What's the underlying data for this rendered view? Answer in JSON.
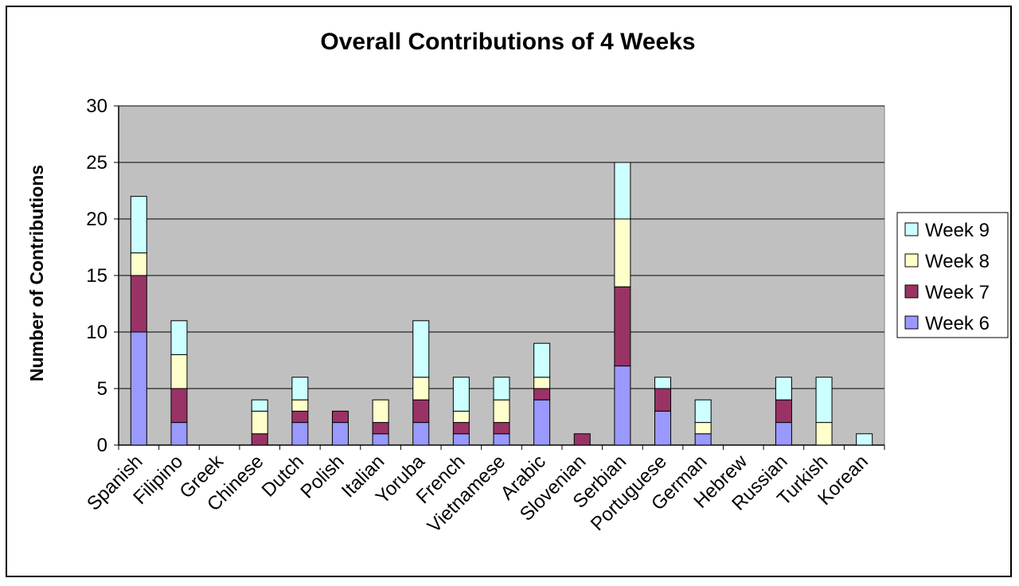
{
  "chart_data": {
    "type": "bar",
    "stacked": true,
    "title": "Overall Contributions of 4 Weeks",
    "xlabel": "",
    "ylabel": "Number of Contributions",
    "ylim": [
      0,
      30
    ],
    "yticks": [
      0,
      5,
      10,
      15,
      20,
      25,
      30
    ],
    "grid": true,
    "legend_position": "right",
    "plot_background": "#c0c0c0",
    "categories": [
      "Spanish",
      "Filipino",
      "Greek",
      "Chinese",
      "Dutch",
      "Polish",
      "Italian",
      "Yoruba",
      "French",
      "Vietnamese",
      "Arabic",
      "Slovenian",
      "Serbian",
      "Portuguese",
      "German",
      "Hebrew",
      "Russian",
      "Turkish",
      "Korean"
    ],
    "series": [
      {
        "name": "Week 6",
        "color": "#9999ff",
        "values": [
          10,
          2,
          0,
          0,
          2,
          2,
          1,
          2,
          1,
          1,
          4,
          0,
          7,
          3,
          1,
          0,
          2,
          0,
          0
        ]
      },
      {
        "name": "Week 7",
        "color": "#993366",
        "values": [
          5,
          3,
          0,
          1,
          1,
          1,
          1,
          2,
          1,
          1,
          1,
          1,
          7,
          2,
          0,
          0,
          2,
          0,
          0
        ]
      },
      {
        "name": "Week 8",
        "color": "#ffffcc",
        "values": [
          2,
          3,
          0,
          2,
          1,
          0,
          2,
          2,
          1,
          2,
          1,
          0,
          6,
          0,
          1,
          0,
          0,
          2,
          0
        ]
      },
      {
        "name": "Week 9",
        "color": "#ccffff",
        "values": [
          5,
          3,
          0,
          1,
          2,
          0,
          0,
          5,
          3,
          2,
          3,
          0,
          5,
          1,
          2,
          0,
          2,
          4,
          1
        ]
      }
    ],
    "legend_order": [
      "Week 9",
      "Week 8",
      "Week 7",
      "Week 6"
    ]
  }
}
